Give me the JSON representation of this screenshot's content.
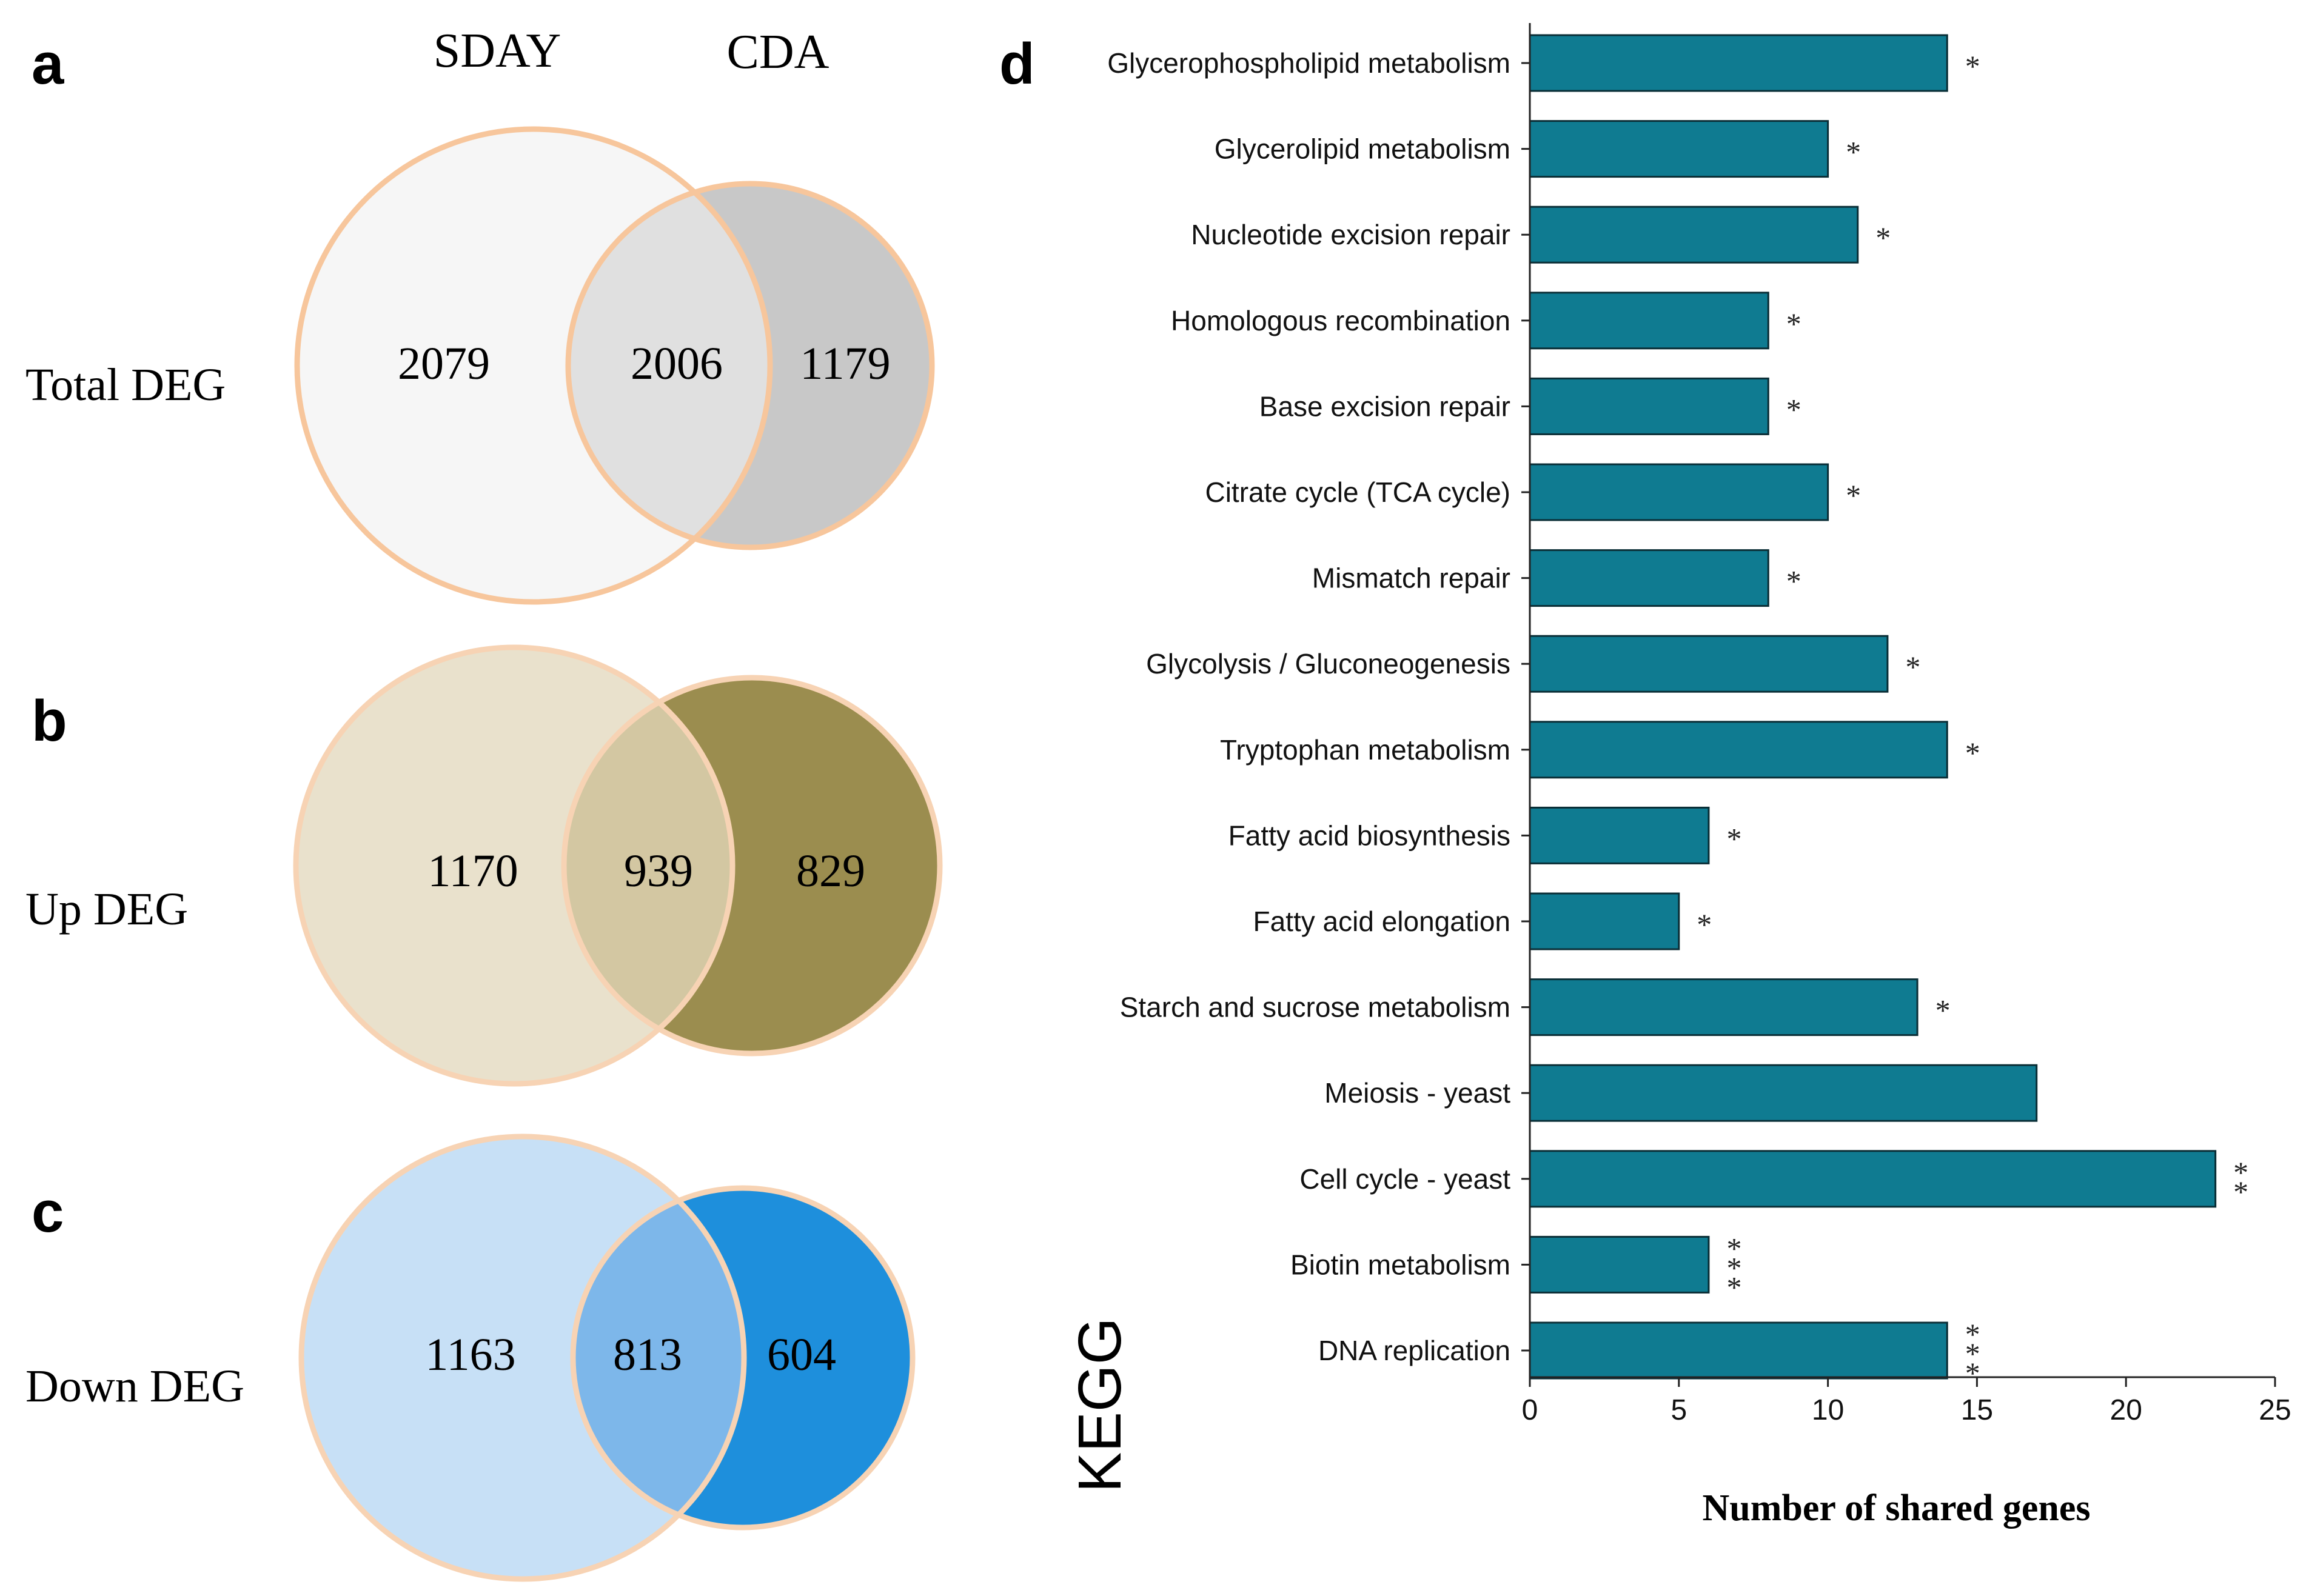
{
  "panels": {
    "a": "a",
    "b": "b",
    "c": "c",
    "d": "d"
  },
  "venn": {
    "headers": {
      "left": "SDAY",
      "right": "CDA"
    },
    "rows": [
      {
        "label": "Total DEG",
        "left_only": "2079",
        "overlap": "2006",
        "right_only": "1179",
        "colors": {
          "left": "#f6f6f6",
          "right": "#c8c8c8",
          "overlap": "#e0e0e0",
          "stroke": "#f7c69c"
        }
      },
      {
        "label": "Up DEG",
        "left_only": "1170",
        "overlap": "939",
        "right_only": "829",
        "colors": {
          "left": "#e9e1cc",
          "right": "#9b8d4f",
          "overlap": "#d3c7a2",
          "stroke": "#f7d3b4"
        }
      },
      {
        "label": "Down DEG",
        "left_only": "1163",
        "overlap": "813",
        "right_only": "604",
        "colors": {
          "left": "#c7e0f6",
          "right": "#1e8fdc",
          "overlap": "#7db7ea",
          "stroke": "#f7d3b4"
        }
      }
    ]
  },
  "chart_data": {
    "type": "bar",
    "orientation": "horizontal",
    "title": "",
    "categories": [
      "Glycerophospholipid metabolism",
      "Glycerolipid metabolism",
      "Nucleotide excision repair",
      "Homologous recombination",
      "Base excision repair",
      "Citrate cycle (TCA cycle)",
      "Mismatch repair",
      "Glycolysis / Gluconeogenesis",
      "Tryptophan metabolism",
      "Fatty acid biosynthesis",
      "Fatty acid elongation",
      "Starch and sucrose metabolism",
      "Meiosis - yeast",
      "Cell cycle - yeast",
      "Biotin metabolism",
      "DNA replication"
    ],
    "values": [
      14,
      10,
      11,
      8,
      8,
      10,
      8,
      12,
      14,
      6,
      5,
      13,
      17,
      23,
      6,
      14
    ],
    "significance": [
      "*",
      "*",
      "*",
      "*",
      "*",
      "*",
      "*",
      "*",
      "*",
      "*",
      "*",
      "*",
      "",
      "**",
      "***",
      "***"
    ],
    "xlabel": "Number of shared genes",
    "ylabel": "KEGG",
    "xlim": [
      0,
      25
    ],
    "xticks": [
      0,
      5,
      10,
      15,
      20,
      25
    ],
    "bar_color": "#0f7b91",
    "bar_edge_color": "#0a2e36"
  }
}
